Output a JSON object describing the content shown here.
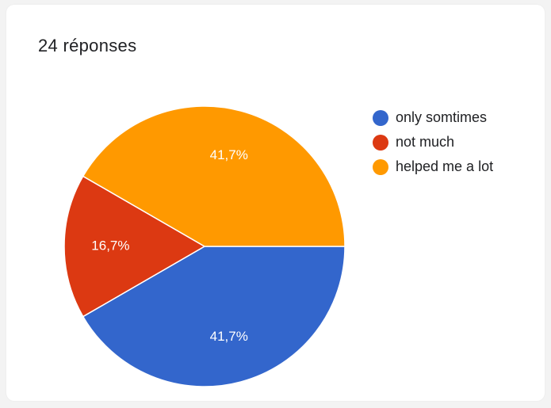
{
  "response_summary": "24 réponses",
  "chart_data": {
    "type": "pie",
    "categories": [
      "only somtimes",
      "not much",
      "helped me a lot"
    ],
    "values": [
      41.7,
      16.7,
      41.7
    ],
    "value_labels": [
      "41,7%",
      "16,7%",
      "41,7%"
    ],
    "colors": [
      "#3366cc",
      "#dc3912",
      "#ff9900"
    ],
    "legend_position": "right"
  }
}
